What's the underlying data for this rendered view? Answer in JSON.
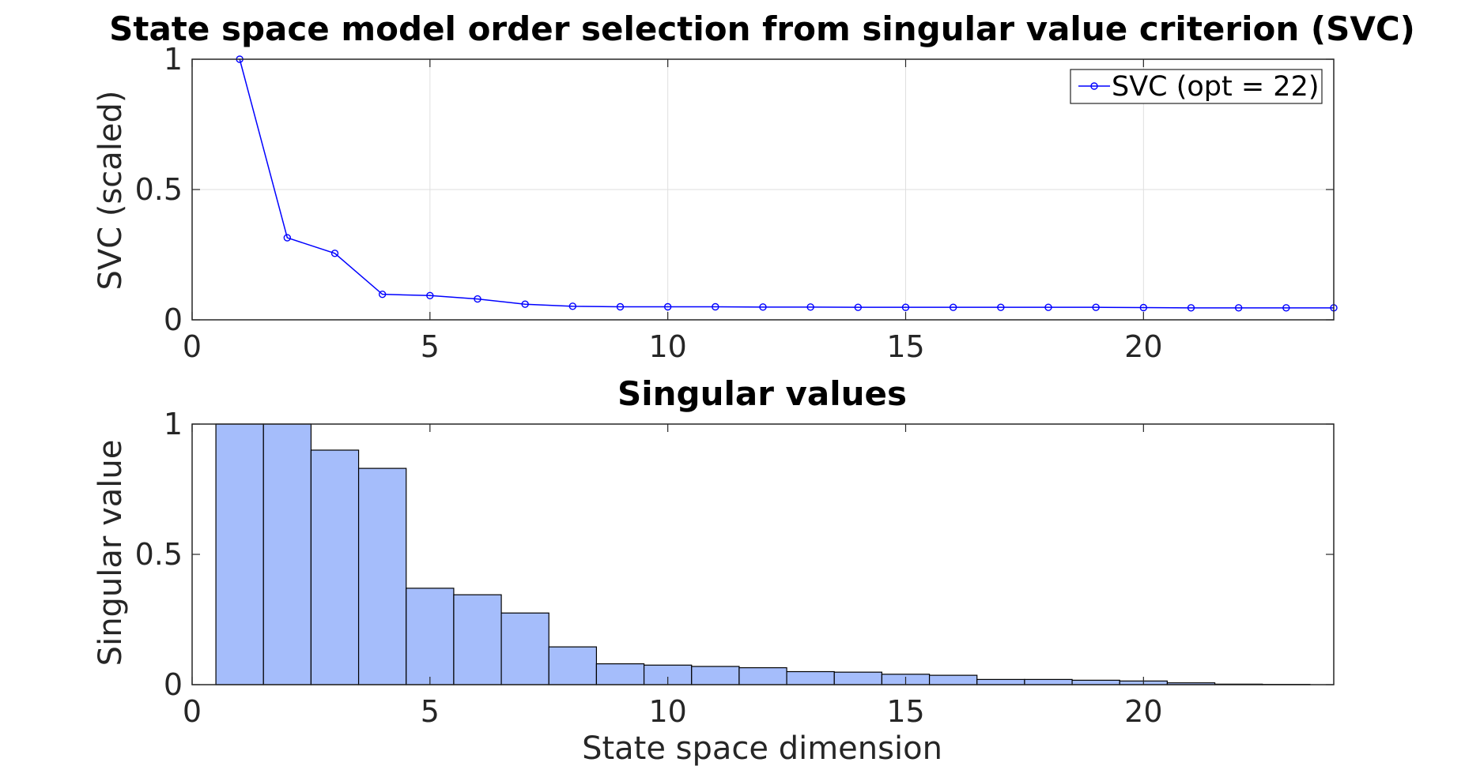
{
  "chart_data": [
    {
      "type": "line",
      "title": "State space model order selection from singular value criterion (SVC)",
      "xlabel": "",
      "ylabel": "SVC (scaled)",
      "xlim": [
        0,
        24
      ],
      "ylim": [
        0,
        1
      ],
      "xticks": [
        0,
        5,
        10,
        15,
        20
      ],
      "yticks": [
        0,
        0.5,
        1
      ],
      "xtick_labels": [
        "0",
        "5",
        "10",
        "15",
        "20"
      ],
      "ytick_labels": [
        "0",
        "0.5",
        "1"
      ],
      "grid": true,
      "legend_position": "top-right",
      "series": [
        {
          "name": "SVC (opt = 22)",
          "color": "#0000ff",
          "marker": "open-circle",
          "x": [
            1,
            2,
            3,
            4,
            5,
            6,
            7,
            8,
            9,
            10,
            11,
            12,
            13,
            14,
            15,
            16,
            17,
            18,
            19,
            20,
            21,
            22,
            23,
            24
          ],
          "y": [
            1.0,
            0.315,
            0.255,
            0.098,
            0.093,
            0.08,
            0.06,
            0.052,
            0.05,
            0.05,
            0.05,
            0.049,
            0.049,
            0.048,
            0.048,
            0.048,
            0.048,
            0.048,
            0.048,
            0.047,
            0.046,
            0.046,
            0.046,
            0.046
          ]
        }
      ]
    },
    {
      "type": "bar",
      "title": "Singular values",
      "xlabel": "State space dimension",
      "ylabel": "Singular value",
      "xlim": [
        0,
        24
      ],
      "ylim": [
        0,
        1
      ],
      "xticks": [
        0,
        5,
        10,
        15,
        20
      ],
      "yticks": [
        0,
        0.5,
        1
      ],
      "xtick_labels": [
        "0",
        "5",
        "10",
        "15",
        "20"
      ],
      "ytick_labels": [
        "0",
        "0.5",
        "1"
      ],
      "grid": false,
      "bar_color": "#a5bdfb",
      "edge_color": "#000000",
      "x": [
        1,
        2,
        3,
        4,
        5,
        6,
        7,
        8,
        9,
        10,
        11,
        12,
        13,
        14,
        15,
        16,
        17,
        18,
        19,
        20,
        21,
        22,
        23
      ],
      "values": [
        1.0,
        1.0,
        0.9,
        0.83,
        0.37,
        0.345,
        0.275,
        0.145,
        0.08,
        0.075,
        0.07,
        0.065,
        0.05,
        0.048,
        0.04,
        0.036,
        0.02,
        0.02,
        0.017,
        0.014,
        0.007,
        0.002,
        0.001
      ]
    }
  ]
}
